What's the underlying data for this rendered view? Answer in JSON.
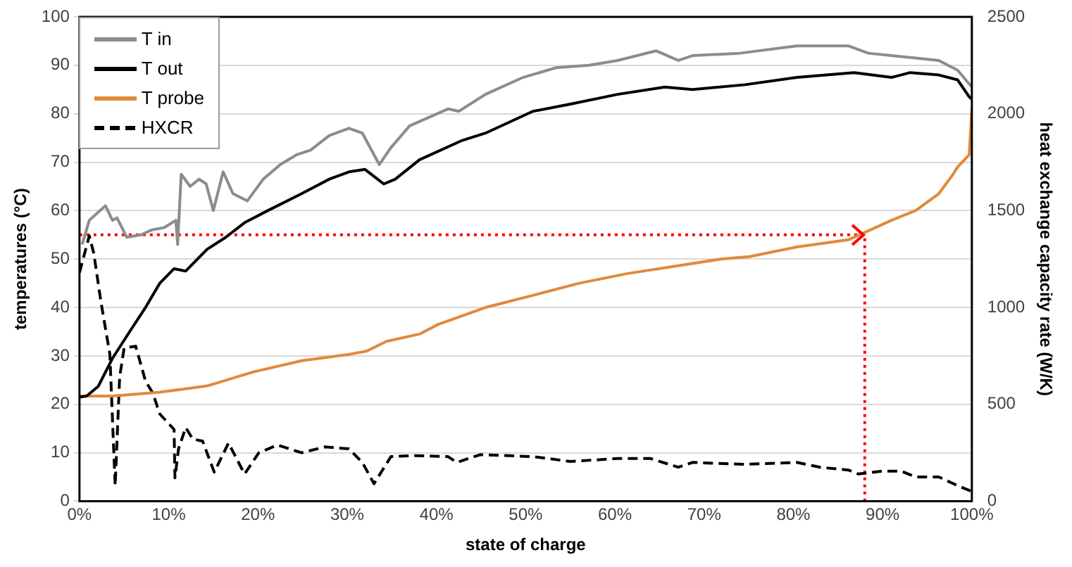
{
  "chart_data": {
    "type": "line",
    "xlabel": "state of charge",
    "ylabel": "temperatures (°C)",
    "y2label": "heat exchange capacity rate (W/K)",
    "xlim": [
      0,
      100
    ],
    "xticks": [
      {
        "value": 0,
        "label": "0%"
      },
      {
        "value": 10,
        "label": "10%"
      },
      {
        "value": 20,
        "label": "20%"
      },
      {
        "value": 30,
        "label": "30%"
      },
      {
        "value": 40,
        "label": "40%"
      },
      {
        "value": 50,
        "label": "50%"
      },
      {
        "value": 60,
        "label": "60%"
      },
      {
        "value": 70,
        "label": "70%"
      },
      {
        "value": 80,
        "label": "80%"
      },
      {
        "value": 90,
        "label": "90%"
      },
      {
        "value": 100,
        "label": "100%"
      }
    ],
    "ylim": [
      0,
      100
    ],
    "yticks": [
      0,
      10,
      20,
      30,
      40,
      50,
      60,
      70,
      80,
      90,
      100
    ],
    "y2lim": [
      0,
      2500
    ],
    "y2ticks": [
      0,
      500,
      1000,
      1500,
      2000,
      2500
    ],
    "grid": "y",
    "legend": "top left",
    "marker": "none",
    "series": [
      {
        "name": "T in",
        "color": "#8c8c8c",
        "line_style": "solid",
        "x": [
          0.3,
          1.1,
          2.9,
          3.7,
          4.2,
          5.3,
          6.9,
          8.1,
          9.5,
          10.8,
          11,
          11.4,
          12.4,
          13.4,
          14.2,
          15,
          16.1,
          17.2,
          18.8,
          20.6,
          22.5,
          24.3,
          25.9,
          28,
          30.2,
          31.7,
          33.6,
          34.9,
          37,
          41.3,
          42.5,
          45.5,
          49.7,
          53.4,
          57.1,
          60.3,
          64.6,
          67.1,
          68.7,
          74,
          80.4,
          83,
          86.2,
          88.4,
          91,
          93.7,
          96.3,
          98.4,
          100
        ],
        "values": [
          53,
          58,
          61,
          58,
          58.5,
          54.5,
          55,
          56,
          56.5,
          58,
          53,
          67.5,
          65,
          66.5,
          65.5,
          60,
          68,
          63.5,
          62,
          66.5,
          69.5,
          71.5,
          72.5,
          75.5,
          77,
          76,
          69.5,
          73,
          77.5,
          81,
          80.5,
          84,
          87.5,
          89.5,
          90,
          91,
          93,
          91,
          92,
          92.5,
          94,
          94,
          94,
          92.5,
          92,
          91.5,
          91,
          89,
          85.5
        ]
      },
      {
        "name": "T out",
        "color": "#000000",
        "line_style": "solid",
        "x": [
          0,
          0.8,
          2.1,
          3.7,
          5.8,
          7.4,
          9,
          10.6,
          11.9,
          14.3,
          16.4,
          18.5,
          21.1,
          24.9,
          28,
          30.2,
          32,
          34.1,
          35.4,
          38.1,
          42.9,
          45.5,
          50.8,
          55,
          60.3,
          65.6,
          68.7,
          74.6,
          80.4,
          86.8,
          91,
          93.1,
          96.3,
          98.4,
          99.7,
          100
        ],
        "values": [
          21.5,
          21.7,
          23.7,
          29.5,
          35.5,
          40,
          45,
          48,
          47.5,
          52,
          54.5,
          57.5,
          60,
          63.5,
          66.5,
          68,
          68.5,
          65.5,
          66.5,
          70.5,
          74.5,
          76,
          80.5,
          82,
          84,
          85.5,
          85,
          86,
          87.5,
          88.5,
          87.5,
          88.5,
          88,
          87,
          83.5,
          83
        ]
      },
      {
        "name": "T probe",
        "color": "#e08a3c",
        "line_style": "solid",
        "x": [
          0,
          3.7,
          9,
          14.3,
          19.5,
          24.9,
          30.2,
          32.2,
          34.4,
          38.1,
          40.2,
          45.5,
          50.8,
          56,
          61.4,
          66.7,
          71.9,
          75.1,
          80.4,
          86.2,
          88,
          91,
          93.7,
          96.3,
          97.9,
          98.4,
          99.7,
          100
        ],
        "values": [
          21.7,
          21.7,
          22.5,
          23.8,
          26.7,
          29,
          30.3,
          31,
          33,
          34.5,
          36.5,
          40,
          42.5,
          45,
          47,
          48.5,
          50,
          50.5,
          52.5,
          54,
          55.5,
          58,
          60,
          63.5,
          67.5,
          69,
          71.5,
          81
        ]
      },
      {
        "name": "HXCR",
        "color": "#000000",
        "line_style": "dashed",
        "axis": "y2",
        "x": [
          0,
          1.1,
          1.6,
          2.4,
          3.4,
          4,
          4.5,
          5,
          6.3,
          7.4,
          8.2,
          9,
          10.6,
          10.7,
          11.1,
          11.9,
          12.7,
          13.8,
          15.1,
          16.7,
          18.5,
          20.1,
          22.2,
          24.9,
          27.5,
          30.2,
          31.7,
          33,
          34.9,
          37.6,
          41.3,
          42.3,
          44.9,
          50.8,
          55,
          60.3,
          64,
          67.1,
          68.7,
          74.6,
          80.4,
          83,
          86.2,
          87.3,
          90,
          92.1,
          93.7,
          96.3,
          98.4,
          100
        ],
        "values": [
          1180,
          1370,
          1280,
          1030,
          760,
          80,
          640,
          790,
          800,
          620,
          560,
          450,
          370,
          120,
          270,
          380,
          320,
          310,
          150,
          300,
          140,
          250,
          290,
          250,
          280,
          270,
          200,
          90,
          230,
          235,
          230,
          200,
          240,
          230,
          205,
          220,
          220,
          175,
          200,
          190,
          200,
          175,
          160,
          140,
          155,
          155,
          125,
          125,
          80,
          50
        ]
      },
      {
        "color": "#ff0000",
        "line_style": "dotted",
        "x": [
          0,
          88,
          88
        ],
        "values": [
          55,
          55,
          0
        ]
      }
    ]
  }
}
